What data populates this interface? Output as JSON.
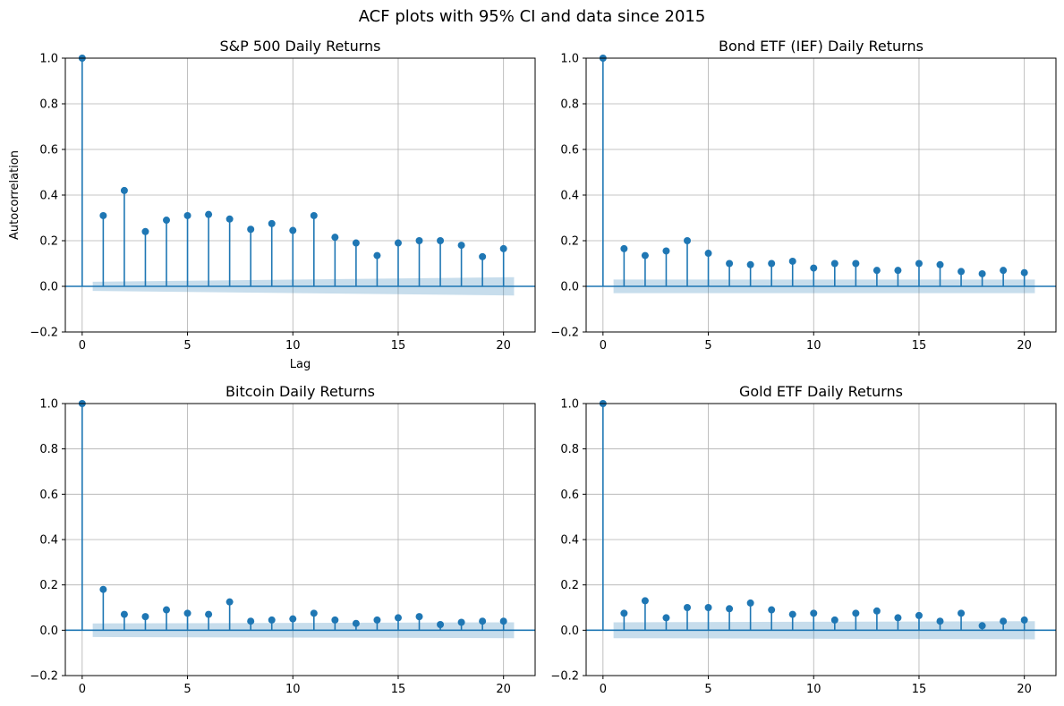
{
  "suptitle": "ACF plots with 95% CI and data since 2015",
  "colors": {
    "series": "#1f77b4",
    "grid": "#b0b0b0"
  },
  "chart_data": [
    {
      "type": "stem",
      "title": "S&P 500 Daily Returns",
      "xlabel": "Lag",
      "ylabel": "Autocorrelation",
      "xlim": [
        -0.8,
        21.5
      ],
      "ylim": [
        -0.2,
        1.0
      ],
      "xticks": [
        0,
        5,
        10,
        15,
        20
      ],
      "yticks": [
        -0.2,
        0.0,
        0.2,
        0.4,
        0.6,
        0.8,
        1.0
      ],
      "grid": true,
      "lags": [
        0,
        1,
        2,
        3,
        4,
        5,
        6,
        7,
        8,
        9,
        10,
        11,
        12,
        13,
        14,
        15,
        16,
        17,
        18,
        19,
        20
      ],
      "values": [
        1.0,
        0.31,
        0.42,
        0.24,
        0.29,
        0.31,
        0.315,
        0.295,
        0.25,
        0.275,
        0.245,
        0.31,
        0.215,
        0.19,
        0.135,
        0.19,
        0.2,
        0.2,
        0.18,
        0.13,
        0.165
      ],
      "ci_range": [
        0.5,
        20.5
      ],
      "ci_upper": [
        0.02,
        0.04
      ],
      "ci_lower": [
        -0.02,
        -0.04
      ]
    },
    {
      "type": "stem",
      "title": "Bond ETF (IEF) Daily Returns",
      "xlabel": "",
      "ylabel": "",
      "xlim": [
        -0.8,
        21.5
      ],
      "ylim": [
        -0.2,
        1.0
      ],
      "xticks": [
        0,
        5,
        10,
        15,
        20
      ],
      "yticks": [
        -0.2,
        0.0,
        0.2,
        0.4,
        0.6,
        0.8,
        1.0
      ],
      "grid": true,
      "lags": [
        0,
        1,
        2,
        3,
        4,
        5,
        6,
        7,
        8,
        9,
        10,
        11,
        12,
        13,
        14,
        15,
        16,
        17,
        18,
        19,
        20
      ],
      "values": [
        1.0,
        0.165,
        0.135,
        0.155,
        0.2,
        0.145,
        0.1,
        0.095,
        0.1,
        0.11,
        0.08,
        0.1,
        0.1,
        0.07,
        0.07,
        0.1,
        0.095,
        0.065,
        0.055,
        0.07,
        0.06
      ],
      "ci_range": [
        0.5,
        20.5
      ],
      "ci_upper": [
        0.03,
        0.03
      ],
      "ci_lower": [
        -0.03,
        -0.03
      ]
    },
    {
      "type": "stem",
      "title": "Bitcoin Daily Returns",
      "xlabel": "",
      "ylabel": "",
      "xlim": [
        -0.8,
        21.5
      ],
      "ylim": [
        -0.2,
        1.0
      ],
      "xticks": [
        0,
        5,
        10,
        15,
        20
      ],
      "yticks": [
        -0.2,
        0.0,
        0.2,
        0.4,
        0.6,
        0.8,
        1.0
      ],
      "grid": true,
      "lags": [
        0,
        1,
        2,
        3,
        4,
        5,
        6,
        7,
        8,
        9,
        10,
        11,
        12,
        13,
        14,
        15,
        16,
        17,
        18,
        19,
        20
      ],
      "values": [
        1.0,
        0.18,
        0.07,
        0.06,
        0.09,
        0.075,
        0.07,
        0.125,
        0.04,
        0.045,
        0.05,
        0.075,
        0.045,
        0.03,
        0.045,
        0.055,
        0.06,
        0.025,
        0.035,
        0.04,
        0.04
      ],
      "ci_range": [
        0.5,
        20.5
      ],
      "ci_upper": [
        0.03,
        0.035
      ],
      "ci_lower": [
        -0.03,
        -0.035
      ]
    },
    {
      "type": "stem",
      "title": "Gold ETF Daily Returns",
      "xlabel": "",
      "ylabel": "",
      "xlim": [
        -0.8,
        21.5
      ],
      "ylim": [
        -0.2,
        1.0
      ],
      "xticks": [
        0,
        5,
        10,
        15,
        20
      ],
      "yticks": [
        -0.2,
        0.0,
        0.2,
        0.4,
        0.6,
        0.8,
        1.0
      ],
      "grid": true,
      "lags": [
        0,
        1,
        2,
        3,
        4,
        5,
        6,
        7,
        8,
        9,
        10,
        11,
        12,
        13,
        14,
        15,
        16,
        17,
        18,
        19,
        20
      ],
      "values": [
        1.0,
        0.075,
        0.13,
        0.055,
        0.1,
        0.1,
        0.095,
        0.12,
        0.09,
        0.07,
        0.075,
        0.045,
        0.075,
        0.085,
        0.055,
        0.065,
        0.04,
        0.075,
        0.02,
        0.04,
        0.045
      ],
      "ci_range": [
        0.5,
        20.5
      ],
      "ci_upper": [
        0.035,
        0.04
      ],
      "ci_lower": [
        -0.035,
        -0.04
      ]
    }
  ]
}
